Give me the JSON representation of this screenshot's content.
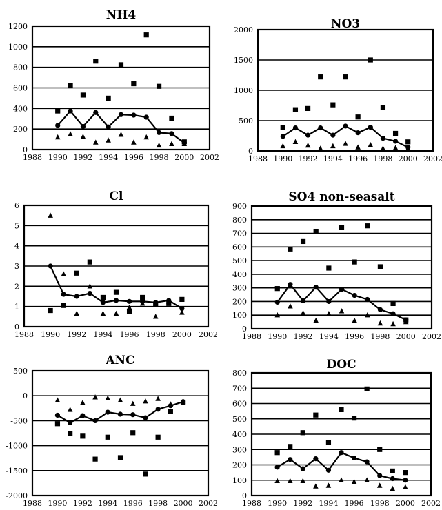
{
  "chart_data": [
    {
      "type": "line",
      "title": "NH4",
      "xlim": [
        1988,
        2002
      ],
      "ylim": [
        0,
        1200
      ],
      "xticks": [
        1988,
        1990,
        1992,
        1994,
        1996,
        1998,
        2000,
        2002
      ],
      "yticks": [
        0,
        200,
        400,
        600,
        800,
        1000,
        1200
      ],
      "grid": true,
      "series": [
        {
          "marker": "square",
          "x": [
            1990,
            1991,
            1992,
            1993,
            1994,
            1995,
            1996,
            1997,
            1998,
            1999,
            2000
          ],
          "y": [
            375,
            620,
            530,
            860,
            500,
            825,
            640,
            1115,
            615,
            305,
            75
          ]
        },
        {
          "marker": "circle-line",
          "x": [
            1990,
            1991,
            1992,
            1993,
            1994,
            1995,
            1996,
            1997,
            1998,
            1999,
            2000
          ],
          "y": [
            235,
            375,
            225,
            360,
            220,
            340,
            335,
            315,
            165,
            155,
            65
          ]
        },
        {
          "marker": "triangle",
          "x": [
            1990,
            1991,
            1992,
            1993,
            1994,
            1995,
            1996,
            1997,
            1998,
            1999,
            2000
          ],
          "y": [
            120,
            150,
            125,
            70,
            90,
            145,
            70,
            120,
            40,
            55,
            55
          ]
        }
      ]
    },
    {
      "type": "line",
      "title": "NO3",
      "xlim": [
        1988,
        2002
      ],
      "ylim": [
        0,
        2000
      ],
      "xticks": [
        1988,
        1990,
        1992,
        1994,
        1996,
        1998,
        2000,
        2002
      ],
      "yticks": [
        0,
        500,
        1000,
        1500,
        2000
      ],
      "grid": true,
      "series": [
        {
          "marker": "square",
          "x": [
            1990,
            1991,
            1992,
            1993,
            1994,
            1995,
            1996,
            1997,
            1998,
            1999,
            2000
          ],
          "y": [
            390,
            680,
            700,
            1220,
            760,
            1220,
            560,
            1500,
            720,
            290,
            150
          ]
        },
        {
          "marker": "circle-line",
          "x": [
            1990,
            1991,
            1992,
            1993,
            1994,
            1995,
            1996,
            1997,
            1998,
            1999,
            2000
          ],
          "y": [
            240,
            380,
            260,
            380,
            260,
            410,
            300,
            390,
            210,
            160,
            60
          ]
        },
        {
          "marker": "triangle",
          "x": [
            1990,
            1991,
            1992,
            1993,
            1994,
            1995,
            1996,
            1997,
            1998,
            1999,
            2000
          ],
          "y": [
            80,
            150,
            90,
            40,
            80,
            120,
            60,
            100,
            40,
            50,
            40
          ]
        }
      ]
    },
    {
      "type": "line",
      "title": "Cl",
      "xlim": [
        1988,
        2002
      ],
      "ylim": [
        0,
        6
      ],
      "xticks": [
        1988,
        1990,
        1992,
        1994,
        1996,
        1998,
        2000,
        2002
      ],
      "yticks": [
        0,
        1,
        2,
        3,
        4,
        5,
        6
      ],
      "grid": true,
      "series": [
        {
          "marker": "square",
          "x": [
            1990,
            1991,
            1992,
            1993,
            1994,
            1995,
            1996,
            1997,
            1998,
            1999,
            2000
          ],
          "y": [
            0.8,
            1.05,
            2.65,
            3.2,
            1.45,
            1.7,
            0.75,
            1.45,
            1.1,
            1.15,
            1.35
          ]
        },
        {
          "marker": "circle-line",
          "x": [
            1990,
            1991,
            1992,
            1993,
            1994,
            1995,
            1996,
            1997,
            1998,
            1999,
            2000
          ],
          "y": [
            3.0,
            1.6,
            1.5,
            1.65,
            1.2,
            1.3,
            1.25,
            1.25,
            1.2,
            1.3,
            0.9
          ]
        },
        {
          "marker": "triangle",
          "x": [
            1990,
            1991,
            1992,
            1993,
            1994,
            1995,
            1996,
            1997,
            1998,
            1999,
            2000
          ],
          "y": [
            5.5,
            2.6,
            0.65,
            2.0,
            0.65,
            0.65,
            0.95,
            1.15,
            0.5,
            1.25,
            0.7
          ]
        }
      ]
    },
    {
      "type": "line",
      "title": "SO4 non-seasalt",
      "xlim": [
        1988,
        2002
      ],
      "ylim": [
        0,
        900
      ],
      "xticks": [
        1988,
        1990,
        1992,
        1994,
        1996,
        1998,
        2000,
        2002
      ],
      "yticks": [
        0,
        100,
        200,
        300,
        400,
        500,
        600,
        700,
        800,
        900
      ],
      "grid": true,
      "series": [
        {
          "marker": "square",
          "x": [
            1990,
            1991,
            1992,
            1993,
            1994,
            1995,
            1996,
            1997,
            1998,
            1999,
            2000
          ],
          "y": [
            295,
            585,
            640,
            715,
            445,
            745,
            490,
            755,
            455,
            185,
            65
          ]
        },
        {
          "marker": "circle-line",
          "x": [
            1990,
            1991,
            1992,
            1993,
            1994,
            1995,
            1996,
            1997,
            1998,
            1999,
            2000
          ],
          "y": [
            195,
            325,
            205,
            305,
            200,
            290,
            245,
            215,
            140,
            110,
            65
          ]
        },
        {
          "marker": "triangle",
          "x": [
            1990,
            1991,
            1992,
            1993,
            1994,
            1995,
            1996,
            1997,
            1998,
            1999,
            2000
          ],
          "y": [
            100,
            165,
            115,
            60,
            110,
            130,
            60,
            100,
            40,
            35,
            50
          ]
        }
      ]
    },
    {
      "type": "line",
      "title": "ANC",
      "xlim": [
        1988,
        2002
      ],
      "ylim": [
        -2000,
        500
      ],
      "xticks": [
        1988,
        1990,
        1992,
        1994,
        1996,
        1998,
        2000,
        2002
      ],
      "yticks": [
        -2000,
        -1500,
        -1000,
        -500,
        0,
        500
      ],
      "grid": true,
      "series": [
        {
          "marker": "square",
          "x": [
            1990,
            1991,
            1992,
            1993,
            1994,
            1995,
            1996,
            1997,
            1998,
            1999,
            2000
          ],
          "y": [
            -560,
            -760,
            -810,
            -1270,
            -830,
            -1240,
            -740,
            -1570,
            -830,
            -310,
            -130
          ]
        },
        {
          "marker": "circle-line",
          "x": [
            1990,
            1991,
            1992,
            1993,
            1994,
            1995,
            1996,
            1997,
            1998,
            1999,
            2000
          ],
          "y": [
            -390,
            -540,
            -400,
            -500,
            -330,
            -370,
            -380,
            -440,
            -270,
            -200,
            -120
          ]
        },
        {
          "marker": "triangle",
          "x": [
            1990,
            1991,
            1992,
            1993,
            1994,
            1995,
            1996,
            1997,
            1998,
            1999,
            2000
          ],
          "y": [
            -90,
            -280,
            -140,
            -30,
            -50,
            -90,
            -160,
            -110,
            -60,
            -170,
            -110
          ]
        }
      ]
    },
    {
      "type": "line",
      "title": "DOC",
      "xlim": [
        1988,
        2002
      ],
      "ylim": [
        0,
        800
      ],
      "xticks": [
        1988,
        1990,
        1992,
        1994,
        1996,
        1998,
        2000,
        2002
      ],
      "yticks": [
        0,
        100,
        200,
        300,
        400,
        500,
        600,
        700,
        800
      ],
      "grid": true,
      "series": [
        {
          "marker": "square",
          "x": [
            1990,
            1991,
            1992,
            1993,
            1994,
            1995,
            1996,
            1997,
            1998,
            1999,
            2000
          ],
          "y": [
            280,
            320,
            410,
            525,
            345,
            560,
            505,
            695,
            300,
            160,
            150
          ]
        },
        {
          "marker": "circle-line",
          "x": [
            1990,
            1991,
            1992,
            1993,
            1994,
            1995,
            1996,
            1997,
            1998,
            1999,
            2000
          ],
          "y": [
            185,
            235,
            175,
            240,
            165,
            280,
            245,
            220,
            130,
            110,
            100
          ]
        },
        {
          "marker": "triangle",
          "x": [
            1990,
            1991,
            1992,
            1993,
            1994,
            1995,
            1996,
            1997,
            1998,
            1999,
            2000
          ],
          "y": [
            95,
            95,
            95,
            60,
            65,
            100,
            90,
            100,
            65,
            45,
            55
          ]
        }
      ]
    }
  ]
}
